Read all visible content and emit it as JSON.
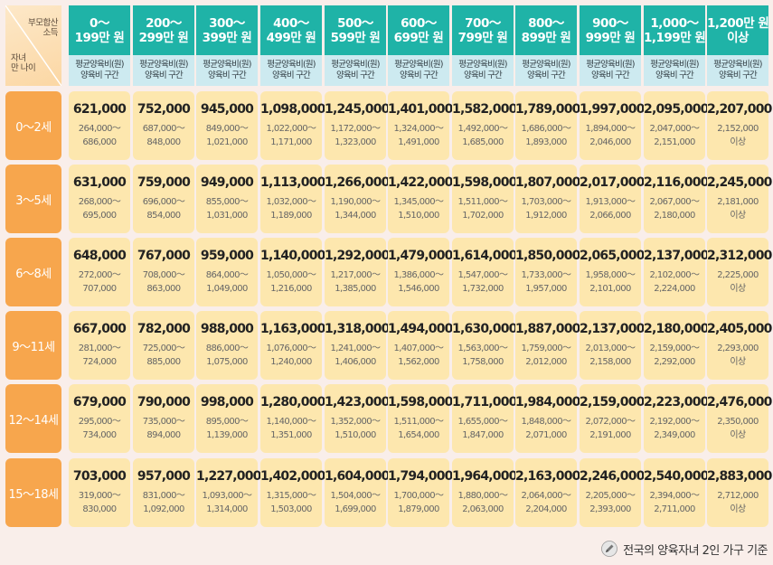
{
  "corner": {
    "top_label_1": "부모합산",
    "top_label_2": "소득",
    "bottom_label_1": "자녀",
    "bottom_label_2": "만 나이"
  },
  "columns": [
    {
      "line1": "0～",
      "line2": "199만 원",
      "sub1": "평균양육비(원)",
      "sub2": "양육비 구간"
    },
    {
      "line1": "200～",
      "line2": "299만 원",
      "sub1": "평균양육비(원)",
      "sub2": "양육비 구간"
    },
    {
      "line1": "300～",
      "line2": "399만 원",
      "sub1": "평균양육비(원)",
      "sub2": "양육비 구간"
    },
    {
      "line1": "400～",
      "line2": "499만 원",
      "sub1": "평균양육비(원)",
      "sub2": "양육비 구간"
    },
    {
      "line1": "500～",
      "line2": "599만 원",
      "sub1": "평균양육비(원)",
      "sub2": "양육비 구간"
    },
    {
      "line1": "600～",
      "line2": "699만 원",
      "sub1": "평균양육비(원)",
      "sub2": "양육비 구간"
    },
    {
      "line1": "700～",
      "line2": "799만 원",
      "sub1": "평균양육비(원)",
      "sub2": "양육비 구간"
    },
    {
      "line1": "800～",
      "line2": "899만 원",
      "sub1": "평균양육비(원)",
      "sub2": "양육비 구간"
    },
    {
      "line1": "900～",
      "line2": "999만 원",
      "sub1": "평균양육비(원)",
      "sub2": "양육비 구간"
    },
    {
      "line1": "1,000～",
      "line2": "1,199만 원",
      "sub1": "평균양육비(원)",
      "sub2": "양육비 구간"
    },
    {
      "line1": "1,200만 원",
      "line2": "이상",
      "sub1": "평균양육비(원)",
      "sub2": "양육비 구간"
    }
  ],
  "rows": [
    {
      "label": "0～2세",
      "cells": [
        {
          "avg": "621,000",
          "r1": "264,000～",
          "r2": "686,000"
        },
        {
          "avg": "752,000",
          "r1": "687,000～",
          "r2": "848,000"
        },
        {
          "avg": "945,000",
          "r1": "849,000～",
          "r2": "1,021,000"
        },
        {
          "avg": "1,098,000",
          "r1": "1,022,000～",
          "r2": "1,171,000"
        },
        {
          "avg": "1,245,000",
          "r1": "1,172,000～",
          "r2": "1,323,000"
        },
        {
          "avg": "1,401,000",
          "r1": "1,324,000～",
          "r2": "1,491,000"
        },
        {
          "avg": "1,582,000",
          "r1": "1,492,000～",
          "r2": "1,685,000"
        },
        {
          "avg": "1,789,000",
          "r1": "1,686,000～",
          "r2": "1,893,000"
        },
        {
          "avg": "1,997,000",
          "r1": "1,894,000～",
          "r2": "2,046,000"
        },
        {
          "avg": "2,095,000",
          "r1": "2,047,000～",
          "r2": "2,151,000"
        },
        {
          "avg": "2,207,000",
          "r1": "2,152,000",
          "r2": "이상"
        }
      ]
    },
    {
      "label": "3～5세",
      "cells": [
        {
          "avg": "631,000",
          "r1": "268,000～",
          "r2": "695,000"
        },
        {
          "avg": "759,000",
          "r1": "696,000～",
          "r2": "854,000"
        },
        {
          "avg": "949,000",
          "r1": "855,000～",
          "r2": "1,031,000"
        },
        {
          "avg": "1,113,000",
          "r1": "1,032,000～",
          "r2": "1,189,000"
        },
        {
          "avg": "1,266,000",
          "r1": "1,190,000～",
          "r2": "1,344,000"
        },
        {
          "avg": "1,422,000",
          "r1": "1,345,000～",
          "r2": "1,510,000"
        },
        {
          "avg": "1,598,000",
          "r1": "1,511,000～",
          "r2": "1,702,000"
        },
        {
          "avg": "1,807,000",
          "r1": "1,703,000～",
          "r2": "1,912,000"
        },
        {
          "avg": "2,017,000",
          "r1": "1,913,000～",
          "r2": "2,066,000"
        },
        {
          "avg": "2,116,000",
          "r1": "2,067,000～",
          "r2": "2,180,000"
        },
        {
          "avg": "2,245,000",
          "r1": "2,181,000",
          "r2": "이상"
        }
      ]
    },
    {
      "label": "6～8세",
      "cells": [
        {
          "avg": "648,000",
          "r1": "272,000～",
          "r2": "707,000"
        },
        {
          "avg": "767,000",
          "r1": "708,000～",
          "r2": "863,000"
        },
        {
          "avg": "959,000",
          "r1": "864,000～",
          "r2": "1,049,000"
        },
        {
          "avg": "1,140,000",
          "r1": "1,050,000～",
          "r2": "1,216,000"
        },
        {
          "avg": "1,292,000",
          "r1": "1,217,000～",
          "r2": "1,385,000"
        },
        {
          "avg": "1,479,000",
          "r1": "1,386,000～",
          "r2": "1,546,000"
        },
        {
          "avg": "1,614,000",
          "r1": "1,547,000～",
          "r2": "1,732,000"
        },
        {
          "avg": "1,850,000",
          "r1": "1,733,000～",
          "r2": "1,957,000"
        },
        {
          "avg": "2,065,000",
          "r1": "1,958,000～",
          "r2": "2,101,000"
        },
        {
          "avg": "2,137,000",
          "r1": "2,102,000～",
          "r2": "2,224,000"
        },
        {
          "avg": "2,312,000",
          "r1": "2,225,000",
          "r2": "이상"
        }
      ]
    },
    {
      "label": "9～11세",
      "cells": [
        {
          "avg": "667,000",
          "r1": "281,000～",
          "r2": "724,000"
        },
        {
          "avg": "782,000",
          "r1": "725,000～",
          "r2": "885,000"
        },
        {
          "avg": "988,000",
          "r1": "886,000～",
          "r2": "1,075,000"
        },
        {
          "avg": "1,163,000",
          "r1": "1,076,000～",
          "r2": "1,240,000"
        },
        {
          "avg": "1,318,000",
          "r1": "1,241,000～",
          "r2": "1,406,000"
        },
        {
          "avg": "1,494,000",
          "r1": "1,407,000～",
          "r2": "1,562,000"
        },
        {
          "avg": "1,630,000",
          "r1": "1,563,000～",
          "r2": "1,758,000"
        },
        {
          "avg": "1,887,000",
          "r1": "1,759,000～",
          "r2": "2,012,000"
        },
        {
          "avg": "2,137,000",
          "r1": "2,013,000～",
          "r2": "2,158,000"
        },
        {
          "avg": "2,180,000",
          "r1": "2,159,000～",
          "r2": "2,292,000"
        },
        {
          "avg": "2,405,000",
          "r1": "2,293,000",
          "r2": "이상"
        }
      ]
    },
    {
      "label": "12～14세",
      "cells": [
        {
          "avg": "679,000",
          "r1": "295,000～",
          "r2": "734,000"
        },
        {
          "avg": "790,000",
          "r1": "735,000～",
          "r2": "894,000"
        },
        {
          "avg": "998,000",
          "r1": "895,000～",
          "r2": "1,139,000"
        },
        {
          "avg": "1,280,000",
          "r1": "1,140,000～",
          "r2": "1,351,000"
        },
        {
          "avg": "1,423,000",
          "r1": "1,352,000～",
          "r2": "1,510,000"
        },
        {
          "avg": "1,598,000",
          "r1": "1,511,000～",
          "r2": "1,654,000"
        },
        {
          "avg": "1,711,000",
          "r1": "1,655,000～",
          "r2": "1,847,000"
        },
        {
          "avg": "1,984,000",
          "r1": "1,848,000～",
          "r2": "2,071,000"
        },
        {
          "avg": "2,159,000",
          "r1": "2,072,000～",
          "r2": "2,191,000"
        },
        {
          "avg": "2,223,000",
          "r1": "2,192,000～",
          "r2": "2,349,000"
        },
        {
          "avg": "2,476,000",
          "r1": "2,350,000",
          "r2": "이상"
        }
      ]
    },
    {
      "label": "15～18세",
      "cells": [
        {
          "avg": "703,000",
          "r1": "319,000～",
          "r2": "830,000"
        },
        {
          "avg": "957,000",
          "r1": "831,000～",
          "r2": "1,092,000"
        },
        {
          "avg": "1,227,000",
          "r1": "1,093,000～",
          "r2": "1,314,000"
        },
        {
          "avg": "1,402,000",
          "r1": "1,315,000～",
          "r2": "1,503,000"
        },
        {
          "avg": "1,604,000",
          "r1": "1,504,000～",
          "r2": "1,699,000"
        },
        {
          "avg": "1,794,000",
          "r1": "1,700,000～",
          "r2": "1,879,000"
        },
        {
          "avg": "1,964,000",
          "r1": "1,880,000～",
          "r2": "2,063,000"
        },
        {
          "avg": "2,163,000",
          "r1": "2,064,000～",
          "r2": "2,204,000"
        },
        {
          "avg": "2,246,000",
          "r1": "2,205,000～",
          "r2": "2,393,000"
        },
        {
          "avg": "2,540,000",
          "r1": "2,394,000～",
          "r2": "2,711,000"
        },
        {
          "avg": "2,883,000",
          "r1": "2,712,000",
          "r2": "이상"
        }
      ]
    }
  ],
  "footnote": {
    "icon": "pencil-icon",
    "text": "전국의 양육자녀 2인 가구 기준"
  },
  "colors": {
    "header_teal": "#1fb3a7",
    "subheader_blue": "#cdeaf0",
    "row_header_orange": "#f7a64d",
    "cell_yellow": "#fde7ae",
    "background": "#f9eeea"
  }
}
